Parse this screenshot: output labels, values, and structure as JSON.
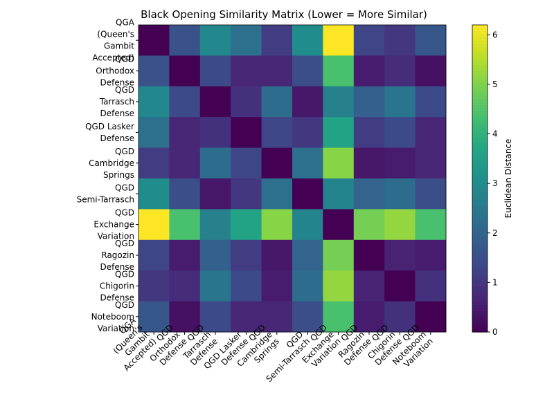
{
  "chart_data": {
    "type": "heatmap",
    "title": "Black Opening Similarity Matrix (Lower = More Similar)",
    "labels": [
      "QGA (Queen's Gambit Accepted)",
      "QGD Orthodox Defense",
      "QGD Tarrasch Defense",
      "QGD Lasker Defense",
      "QGD Cambridge Springs",
      "QGD Semi-Tarrasch",
      "QGD Exchange Variation",
      "QGD Ragozin Defense",
      "QGD Chigorin Defense",
      "QGD Noteboom Variation"
    ],
    "values": [
      [
        0.0,
        1.6,
        2.9,
        2.3,
        1.1,
        3.0,
        6.2,
        1.3,
        1.0,
        1.7
      ],
      [
        1.6,
        0.0,
        1.4,
        0.7,
        0.7,
        1.5,
        4.4,
        0.5,
        0.8,
        0.3
      ],
      [
        2.9,
        1.4,
        0.0,
        0.9,
        2.2,
        0.4,
        2.7,
        1.9,
        2.4,
        1.4
      ],
      [
        2.3,
        0.7,
        0.9,
        0.0,
        1.3,
        1.0,
        3.6,
        1.1,
        1.4,
        0.7
      ],
      [
        1.1,
        0.7,
        2.2,
        1.3,
        0.0,
        2.3,
        5.1,
        0.4,
        0.5,
        0.7
      ],
      [
        3.0,
        1.5,
        0.4,
        1.0,
        2.3,
        0.0,
        2.8,
        2.0,
        2.2,
        1.5
      ],
      [
        6.2,
        4.4,
        2.7,
        3.6,
        5.1,
        2.8,
        0.0,
        4.9,
        5.2,
        4.4
      ],
      [
        1.3,
        0.5,
        1.9,
        1.1,
        0.4,
        2.0,
        4.9,
        0.0,
        0.6,
        0.5
      ],
      [
        1.0,
        0.8,
        2.4,
        1.4,
        0.5,
        2.2,
        5.2,
        0.6,
        0.0,
        0.9
      ],
      [
        1.7,
        0.3,
        1.4,
        0.7,
        0.7,
        1.5,
        4.4,
        0.5,
        0.9,
        0.0
      ]
    ],
    "colorscale": "viridis",
    "vmin": 0,
    "vmax": 6.2,
    "colorbar": {
      "label": "Euclidean Distance",
      "ticks": [
        "0",
        "1",
        "2",
        "3",
        "4",
        "5",
        "6"
      ]
    },
    "xlabel": "",
    "ylabel": ""
  }
}
